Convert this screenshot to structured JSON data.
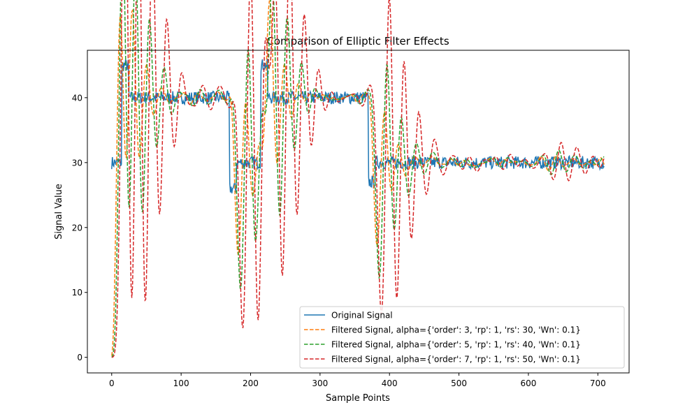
{
  "chart_data": {
    "type": "line",
    "title": "Comparison of Elliptic Filter Effects",
    "xlabel": "Sample Points",
    "ylabel": "Signal Value",
    "xlim": [
      -35,
      745
    ],
    "ylim": [
      -2.4,
      47.3
    ],
    "xticks": [
      0,
      100,
      200,
      300,
      400,
      500,
      600,
      700
    ],
    "yticks": [
      0,
      10,
      20,
      30,
      40
    ],
    "grid": false,
    "legend_position": "lower-right",
    "n_points": 710,
    "segments": [
      {
        "start": 0,
        "end": 15,
        "level": 30
      },
      {
        "start": 15,
        "end": 25,
        "level": 45
      },
      {
        "start": 25,
        "end": 170,
        "level": 40
      },
      {
        "start": 170,
        "end": 180,
        "level": 26
      },
      {
        "start": 180,
        "end": 215,
        "level": 30
      },
      {
        "start": 215,
        "end": 225,
        "level": 45
      },
      {
        "start": 225,
        "end": 370,
        "level": 40
      },
      {
        "start": 370,
        "end": 380,
        "level": 27
      },
      {
        "start": 380,
        "end": 710,
        "level": 30
      }
    ],
    "noise_amplitude": 1.0,
    "series": [
      {
        "name": "Original Signal",
        "color": "#1f77b4",
        "dash": "solid",
        "order": 0
      },
      {
        "name": "Filtered Signal, alpha={'order': 3, 'rp': 1, 'rs': 30, 'Wn': 0.1}",
        "color": "#ff7f0e",
        "dash": "dashed",
        "order": 3
      },
      {
        "name": "Filtered Signal, alpha={'order': 5, 'rp': 1, 'rs': 40, 'Wn': 0.1}",
        "color": "#2ca02c",
        "dash": "dashed",
        "order": 5
      },
      {
        "name": "Filtered Signal, alpha={'order': 7, 'rp': 1, 'rs': 50, 'Wn': 0.1}",
        "color": "#d62728",
        "dash": "dashed",
        "order": 7
      }
    ]
  }
}
